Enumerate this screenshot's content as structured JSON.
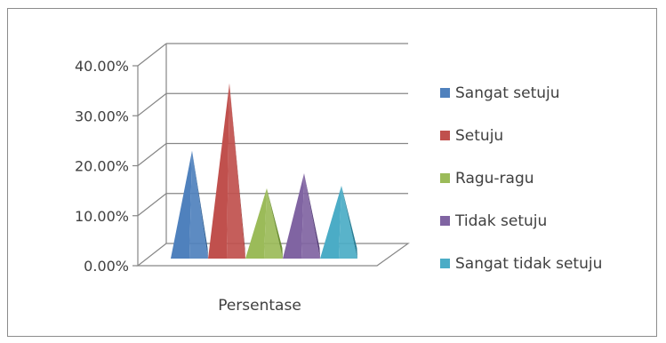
{
  "chart_data": {
    "type": "bar",
    "style": "3d-pyramid",
    "categories": [
      "Persentase"
    ],
    "series": [
      {
        "name": "Sangat setuju",
        "values": [
          21.0
        ],
        "color": "#4f81bd",
        "shade": "#2f5f93"
      },
      {
        "name": "Setuju",
        "values": [
          34.5
        ],
        "color": "#c0504d",
        "shade": "#8e2f2c"
      },
      {
        "name": "Ragu-ragu",
        "values": [
          13.5
        ],
        "color": "#9bbb59",
        "shade": "#6d8f34"
      },
      {
        "name": "Tidak setuju",
        "values": [
          16.5
        ],
        "color": "#8064a2",
        "shade": "#58407a"
      },
      {
        "name": "Sangat tidak setuju",
        "values": [
          14.0
        ],
        "color": "#4bacc6",
        "shade": "#2a7f96"
      }
    ],
    "ylim": [
      0,
      40
    ],
    "yticks": [
      0,
      10,
      20,
      30,
      40
    ],
    "ytick_labels": [
      "0.00%",
      "10.00%",
      "20.00%",
      "30.00%",
      "40.00%"
    ],
    "grid": true,
    "legend": "right"
  }
}
